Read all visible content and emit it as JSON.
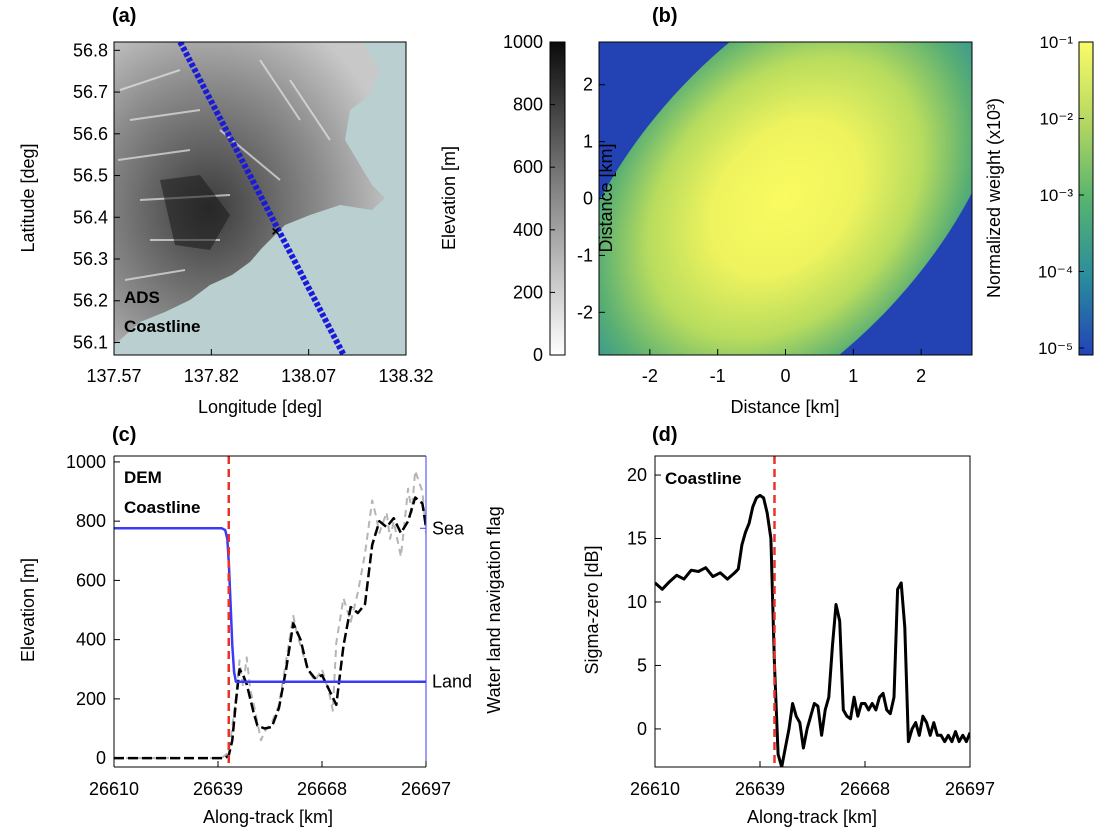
{
  "panels": {
    "a": {
      "label": "(a)"
    },
    "b": {
      "label": "(b)"
    },
    "c": {
      "label": "(c)"
    },
    "d": {
      "label": "(d)"
    }
  },
  "chart_data": [
    {
      "id": "a",
      "type": "heatmap",
      "title": "",
      "xlabel": "Longitude [deg]",
      "ylabel": "Latitude [deg]",
      "x_ticks": [
        "137.57",
        "137.82",
        "138.07",
        "138.32"
      ],
      "y_ticks": [
        "56.1",
        "56.2",
        "56.3",
        "56.4",
        "56.5",
        "56.6",
        "56.7",
        "56.8"
      ],
      "xlim": [
        137.57,
        138.32
      ],
      "ylim": [
        56.07,
        56.82
      ],
      "colorbar": {
        "label": "Elevation [m]",
        "ticks": [
          "0",
          "200",
          "400",
          "600",
          "800",
          "1000"
        ],
        "range": [
          0,
          1000
        ],
        "scale": "linear",
        "colormap": "white-to-black"
      },
      "sea_color": "#b9cfd0",
      "track": {
        "name": "ADS",
        "color": "#1a1adb",
        "start": [
          137.74,
          56.82
        ],
        "end": [
          138.16,
          56.07
        ]
      },
      "coastline_point": {
        "name": "Coastline",
        "color": "#e8332b",
        "lon": 137.985,
        "lat": 56.367
      }
    },
    {
      "id": "b",
      "type": "heatmap",
      "title": "",
      "xlabel": "Distance [km]",
      "ylabel": "Distance [km]",
      "x_ticks": [
        "-2",
        "-1",
        "0",
        "1",
        "2"
      ],
      "y_ticks": [
        "-2",
        "-1",
        "0",
        "1",
        "2"
      ],
      "xlim": [
        -2.75,
        2.75
      ],
      "ylim": [
        -2.75,
        2.75
      ],
      "grid": false,
      "colorbar": {
        "label": "Normalized weight (x10³)",
        "ticks": [
          "10⁻⁵",
          "10⁻⁴",
          "10⁻³",
          "10⁻²",
          "10⁻¹"
        ],
        "range": [
          1e-05,
          0.1
        ],
        "scale": "log",
        "colormap": "blue-green-yellow"
      },
      "pattern": "elliptical weight centred at origin, major axis from upper-left to lower-right"
    },
    {
      "id": "c",
      "type": "line",
      "title": "",
      "xlabel": "Along-track [km]",
      "ylabel": "Elevation [m]",
      "ylabel_right": "Water land navigation flag",
      "x_ticks": [
        "26610",
        "26639",
        "26668",
        "26697"
      ],
      "y_ticks": [
        "0",
        "200",
        "400",
        "600",
        "800",
        "1000"
      ],
      "xlim": [
        26610,
        26697
      ],
      "ylim": [
        -30,
        1020
      ],
      "right_ticks": [
        "Sea",
        "Land"
      ],
      "legend": [
        "DEM",
        "Coastline"
      ],
      "coastline_x": 26642,
      "series": [
        {
          "name": "DEM",
          "color": "#000000",
          "x": [
            26610,
            26641,
            26642,
            26643,
            26644,
            26645,
            26646,
            26647,
            26648,
            26649,
            26650,
            26652,
            26654,
            26656,
            26658,
            26660,
            26662,
            26664,
            26666,
            26668,
            26670,
            26672,
            26674,
            26676,
            26678,
            26680,
            26682,
            26684,
            26686,
            26688,
            26690,
            26692,
            26694,
            26696,
            26697
          ],
          "y": [
            0,
            0,
            10,
            60,
            190,
            300,
            280,
            250,
            200,
            150,
            110,
            100,
            105,
            170,
            300,
            455,
            400,
            300,
            270,
            280,
            230,
            180,
            380,
            510,
            490,
            520,
            720,
            800,
            780,
            810,
            760,
            800,
            880,
            860,
            780
          ]
        },
        {
          "color": "#b5b5b5",
          "x": [
            26610,
            26640,
            26642,
            26644,
            26645,
            26646,
            26647,
            26648,
            26649,
            26650,
            26651,
            26652,
            26654,
            26656,
            26658,
            26660,
            26661,
            26662,
            26664,
            26666,
            26668,
            26670,
            26671,
            26672,
            26674,
            26676,
            26678,
            26680,
            26682,
            26683,
            26684,
            26686,
            26687,
            26688,
            26690,
            26692,
            26693,
            26694,
            26696,
            26697
          ],
          "y": [
            0,
            0,
            20,
            200,
            330,
            240,
            340,
            230,
            180,
            120,
            60,
            90,
            120,
            180,
            330,
            480,
            420,
            380,
            300,
            260,
            300,
            220,
            160,
            390,
            540,
            460,
            560,
            690,
            870,
            820,
            760,
            830,
            740,
            800,
            680,
            910,
            830,
            970,
            900,
            760
          ]
        },
        {
          "name": "Water land navigation flag",
          "color": "#3b3bf5",
          "x": [
            26610,
            26640,
            26641,
            26641.6,
            26642,
            26642.5,
            26643,
            26643.5,
            26644,
            26697
          ],
          "y": [
            776,
            776,
            770,
            740,
            660,
            520,
            380,
            290,
            258,
            258
          ]
        }
      ]
    },
    {
      "id": "d",
      "type": "line",
      "title": "",
      "xlabel": "Along-track [km]",
      "ylabel": "Sigma-zero [dB]",
      "x_ticks": [
        "26610",
        "26639",
        "26668",
        "26697"
      ],
      "y_ticks": [
        "0",
        "5",
        "10",
        "15",
        "20"
      ],
      "xlim": [
        26610,
        26697
      ],
      "ylim": [
        -3,
        21.5
      ],
      "legend": [
        "Coastline"
      ],
      "coastline_x": 26643,
      "series": [
        {
          "color": "#000000",
          "x": [
            26610,
            26612,
            26614,
            26616,
            26618,
            26620,
            26622,
            26624,
            26626,
            26628,
            26630,
            26632,
            26633,
            26634,
            26635,
            26636,
            26637,
            26638,
            26639,
            26640,
            26641,
            26642,
            26643,
            26644,
            26645,
            26646,
            26647,
            26648,
            26649,
            26650,
            26651,
            26652,
            26653,
            26654,
            26655,
            26656,
            26657,
            26658,
            26659,
            26660,
            26661,
            26662,
            26663,
            26664,
            26665,
            26666,
            26667,
            26668,
            26669,
            26670,
            26671,
            26672,
            26673,
            26674,
            26675,
            26676,
            26677,
            26678,
            26679,
            26680,
            26681,
            26682,
            26683,
            26684,
            26685,
            26686,
            26687,
            26688,
            26689,
            26690,
            26691,
            26692,
            26693,
            26694,
            26695,
            26696,
            26697
          ],
          "y": [
            11.5,
            11,
            11.6,
            12.1,
            11.8,
            12.5,
            12.4,
            12.7,
            12,
            12.3,
            11.8,
            12.3,
            12.6,
            14.5,
            15.5,
            16.2,
            17.5,
            18.2,
            18.4,
            18.2,
            17,
            15,
            5,
            -2,
            -3,
            -1.5,
            0,
            2,
            1,
            0.5,
            -1.5,
            0,
            1,
            2,
            1.8,
            -0.5,
            1.5,
            2.5,
            6.5,
            9.8,
            8.5,
            1.5,
            1,
            0.8,
            2.5,
            1,
            2,
            2,
            1.5,
            2,
            1.5,
            2.5,
            2.8,
            1.5,
            1.2,
            2.5,
            11,
            11.5,
            8,
            -1,
            0,
            0.5,
            -0.5,
            1,
            0.5,
            -0.5,
            0.5,
            -0.5,
            -0.5,
            -1,
            -0.5,
            -1,
            -0.2,
            -1,
            -0.5,
            -1,
            -0.3
          ]
        }
      ]
    }
  ]
}
